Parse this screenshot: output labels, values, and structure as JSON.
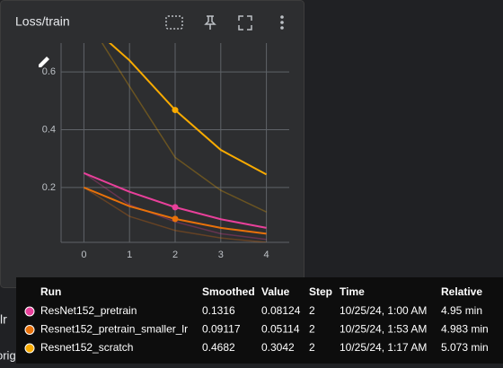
{
  "card": {
    "title": "Loss/train"
  },
  "chart_data": {
    "type": "line",
    "x": [
      0,
      1,
      2,
      3,
      4
    ],
    "xlim": [
      -0.5,
      4.5
    ],
    "xticks": [
      0,
      1,
      2,
      3,
      4
    ],
    "ylim": [
      0.01,
      0.7
    ],
    "yticks": [
      0.2,
      0.4,
      0.6
    ],
    "grid": true,
    "series": [
      {
        "name": "ResNet152_pretrain",
        "color": "#e8409a",
        "values": [
          0.25,
          0.185,
          0.1316,
          0.09,
          0.06
        ],
        "raw_values": [
          0.25,
          0.14,
          0.08124,
          0.04,
          0.02
        ]
      },
      {
        "name": "Resnet152_pretrain_smaller_lr",
        "color": "#e8710a",
        "values": [
          0.2,
          0.135,
          0.09117,
          0.06,
          0.04
        ],
        "raw_values": [
          0.2,
          0.1,
          0.05114,
          0.025,
          0.01
        ]
      },
      {
        "name": "Resnet152_scratch",
        "color": "#f9ab00",
        "values": [
          0.78,
          0.64,
          0.4682,
          0.33,
          0.245
        ],
        "raw_values": [
          0.8,
          0.55,
          0.3042,
          0.19,
          0.115
        ]
      }
    ],
    "hover_index": 2
  },
  "tooltip": {
    "headers": [
      "Run",
      "Smoothed",
      "Value",
      "Step",
      "Time",
      "Relative"
    ],
    "rows": [
      [
        "10/25/24, 1:00 AM",
        "4.95 min"
      ],
      [
        "10/25/24, 1:53 AM",
        "4.983 min"
      ],
      [
        "10/25/24, 1:17 AM",
        "5.073 min"
      ]
    ]
  },
  "background": {
    "labels": [
      "lr",
      "original_image"
    ]
  }
}
